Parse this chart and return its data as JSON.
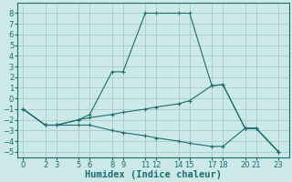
{
  "xlabel": "Humidex (Indice chaleur)",
  "bg_color": "#cce8e8",
  "grid_color": "#aacece",
  "line_color": "#1a6e6e",
  "series": [
    {
      "x": [
        0,
        2,
        3,
        5,
        6,
        8,
        9,
        11,
        12,
        14,
        15,
        17,
        18,
        20,
        21,
        23
      ],
      "y": [
        -1,
        -2.5,
        -2.5,
        -2,
        -1.5,
        2.5,
        2.5,
        8,
        8,
        8,
        8,
        1.2,
        1.3,
        -2.8,
        -2.8,
        -5
      ]
    },
    {
      "x": [
        0,
        2,
        3,
        5,
        6,
        8,
        9,
        11,
        12,
        14,
        15,
        17,
        18,
        20,
        21,
        23
      ],
      "y": [
        -1,
        -2.5,
        -2.5,
        -2,
        -1.8,
        -1.5,
        -1.3,
        -1.0,
        -0.8,
        -0.5,
        -0.2,
        1.2,
        1.3,
        -2.8,
        -2.8,
        -5
      ]
    },
    {
      "x": [
        0,
        2,
        3,
        5,
        6,
        8,
        9,
        11,
        12,
        14,
        15,
        17,
        18,
        20,
        21,
        23
      ],
      "y": [
        -1,
        -2.5,
        -2.5,
        -2.5,
        -2.5,
        -3.0,
        -3.2,
        -3.5,
        -3.7,
        -4.0,
        -4.2,
        -4.5,
        -4.5,
        -2.8,
        -2.8,
        -5
      ]
    }
  ],
  "xlim": [
    -0.5,
    24
  ],
  "ylim": [
    -5.5,
    9.0
  ],
  "xticks": [
    0,
    2,
    3,
    5,
    6,
    8,
    9,
    11,
    12,
    14,
    15,
    17,
    18,
    20,
    21,
    23
  ],
  "yticks": [
    -5,
    -4,
    -3,
    -2,
    -1,
    0,
    1,
    2,
    3,
    4,
    5,
    6,
    7,
    8
  ],
  "xlabel_fontsize": 7.5,
  "tick_fontsize": 6.0
}
